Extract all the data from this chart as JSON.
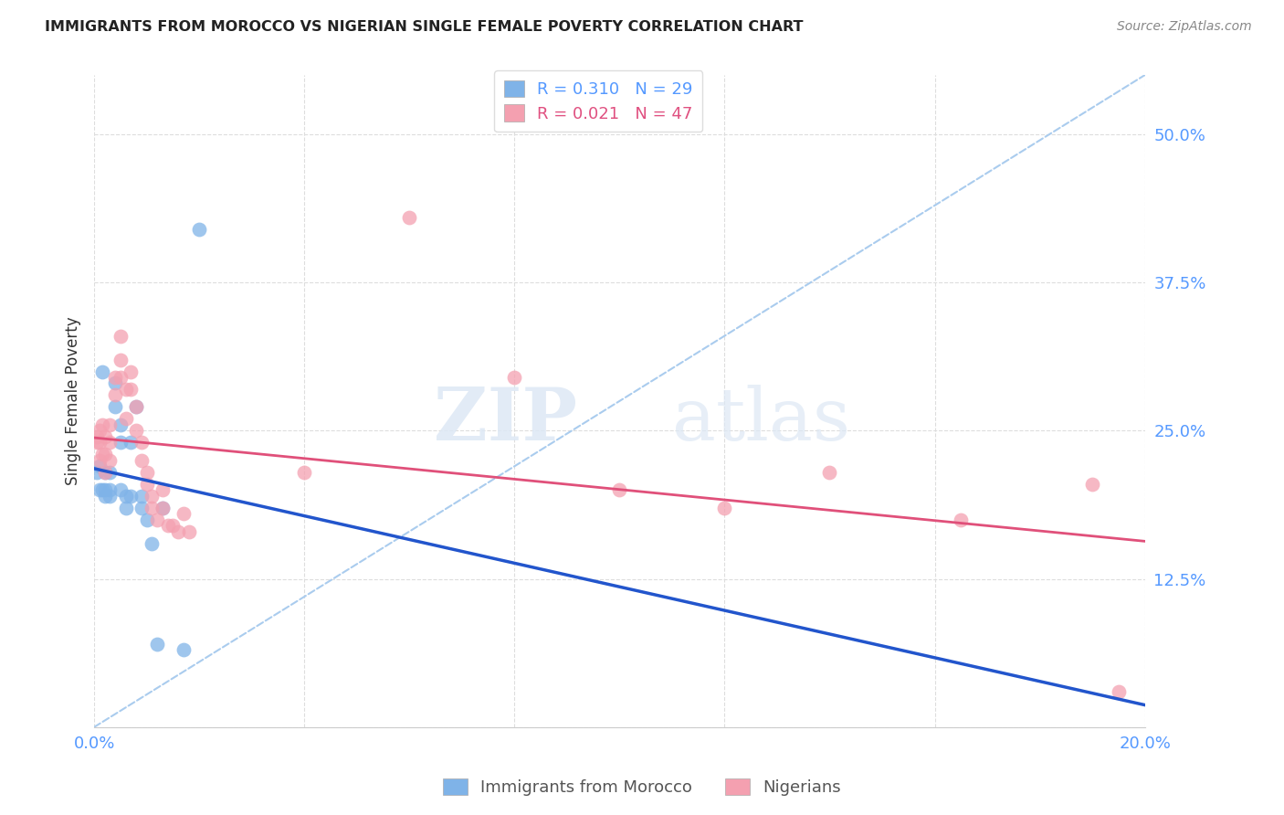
{
  "title": "IMMIGRANTS FROM MOROCCO VS NIGERIAN SINGLE FEMALE POVERTY CORRELATION CHART",
  "source": "Source: ZipAtlas.com",
  "ylabel": "Single Female Poverty",
  "xlim": [
    0.0,
    0.2
  ],
  "ylim": [
    0.0,
    0.55
  ],
  "yticks": [
    0.0,
    0.125,
    0.25,
    0.375,
    0.5
  ],
  "ytick_labels": [
    "",
    "12.5%",
    "25.0%",
    "37.5%",
    "50.0%"
  ],
  "xticks": [
    0.0,
    0.04,
    0.08,
    0.12,
    0.16,
    0.2
  ],
  "xtick_labels": [
    "0.0%",
    "",
    "",
    "",
    "",
    "20.0%"
  ],
  "morocco_color": "#7fb3e8",
  "nigerian_color": "#f4a0b0",
  "morocco_line_color": "#2255cc",
  "nigerian_line_color": "#e0507a",
  "dashed_line_color": "#aaccee",
  "watermark_zip": "ZIP",
  "watermark_atlas": "atlas",
  "morocco_x": [
    0.0005,
    0.001,
    0.001,
    0.0015,
    0.0015,
    0.002,
    0.002,
    0.002,
    0.003,
    0.003,
    0.003,
    0.004,
    0.004,
    0.005,
    0.005,
    0.005,
    0.006,
    0.006,
    0.007,
    0.007,
    0.008,
    0.009,
    0.009,
    0.01,
    0.011,
    0.012,
    0.013,
    0.017,
    0.02
  ],
  "morocco_y": [
    0.215,
    0.22,
    0.2,
    0.3,
    0.2,
    0.215,
    0.2,
    0.195,
    0.215,
    0.2,
    0.195,
    0.29,
    0.27,
    0.255,
    0.24,
    0.2,
    0.195,
    0.185,
    0.24,
    0.195,
    0.27,
    0.195,
    0.185,
    0.175,
    0.155,
    0.07,
    0.185,
    0.065,
    0.42
  ],
  "nigerian_x": [
    0.0005,
    0.0005,
    0.001,
    0.001,
    0.001,
    0.0015,
    0.0015,
    0.002,
    0.002,
    0.002,
    0.003,
    0.003,
    0.003,
    0.004,
    0.004,
    0.005,
    0.005,
    0.005,
    0.006,
    0.006,
    0.007,
    0.007,
    0.008,
    0.008,
    0.009,
    0.009,
    0.01,
    0.01,
    0.011,
    0.011,
    0.012,
    0.013,
    0.013,
    0.014,
    0.015,
    0.016,
    0.017,
    0.018,
    0.04,
    0.06,
    0.08,
    0.1,
    0.12,
    0.14,
    0.165,
    0.19,
    0.195
  ],
  "nigerian_y": [
    0.245,
    0.24,
    0.25,
    0.24,
    0.225,
    0.255,
    0.23,
    0.245,
    0.23,
    0.215,
    0.255,
    0.24,
    0.225,
    0.295,
    0.28,
    0.33,
    0.31,
    0.295,
    0.285,
    0.26,
    0.3,
    0.285,
    0.27,
    0.25,
    0.24,
    0.225,
    0.215,
    0.205,
    0.195,
    0.185,
    0.175,
    0.2,
    0.185,
    0.17,
    0.17,
    0.165,
    0.18,
    0.165,
    0.215,
    0.43,
    0.295,
    0.2,
    0.185,
    0.215,
    0.175,
    0.205,
    0.03
  ]
}
